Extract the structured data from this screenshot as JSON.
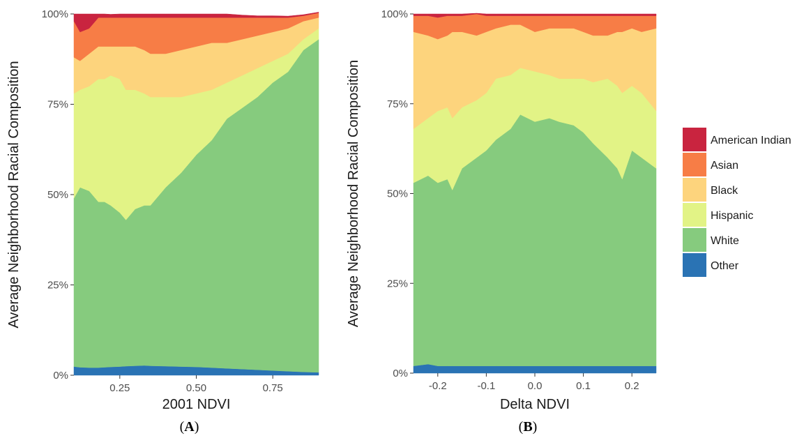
{
  "legend": {
    "items": [
      {
        "label": "American Indian",
        "color": "#c9243f"
      },
      {
        "label": "Asian",
        "color": "#f77d46"
      },
      {
        "label": "Black",
        "color": "#fdd47d"
      },
      {
        "label": "Hispanic",
        "color": "#e2f386"
      },
      {
        "label": "White",
        "color": "#86cb7e"
      },
      {
        "label": "Other",
        "color": "#2a73b4"
      }
    ]
  },
  "chart_data": [
    {
      "type": "area",
      "stacking": "fill",
      "panel_label": "A",
      "xlabel": "2001 NDVI",
      "ylabel": "Average Neighborhood Racial Composition",
      "xlim": [
        0.1,
        0.9
      ],
      "ylim": [
        0,
        1
      ],
      "x_ticks": [
        0.25,
        0.5,
        0.75
      ],
      "x_tick_labels": [
        "0.25",
        "0.50",
        "0.75"
      ],
      "y_ticks": [
        0,
        0.25,
        0.5,
        0.75,
        1
      ],
      "y_tick_labels": [
        "0%",
        "25%",
        "50%",
        "75%",
        "100%"
      ],
      "grid": false,
      "x": [
        0.1,
        0.12,
        0.15,
        0.18,
        0.2,
        0.22,
        0.25,
        0.27,
        0.3,
        0.33,
        0.35,
        0.4,
        0.45,
        0.5,
        0.55,
        0.6,
        0.65,
        0.7,
        0.75,
        0.8,
        0.85,
        0.9
      ],
      "series": [
        {
          "name": "Other",
          "color": "#2a73b4",
          "values": [
            0.024,
            0.022,
            0.021,
            0.021,
            0.022,
            0.023,
            0.024,
            0.025,
            0.026,
            0.027,
            0.026,
            0.025,
            0.024,
            0.023,
            0.021,
            0.019,
            0.017,
            0.015,
            0.013,
            0.011,
            0.009,
            0.008
          ]
        },
        {
          "name": "White",
          "color": "#86cb7e",
          "values": [
            0.466,
            0.498,
            0.489,
            0.459,
            0.458,
            0.447,
            0.426,
            0.405,
            0.434,
            0.443,
            0.444,
            0.495,
            0.536,
            0.587,
            0.629,
            0.691,
            0.723,
            0.755,
            0.797,
            0.829,
            0.891,
            0.922
          ]
        },
        {
          "name": "Hispanic",
          "color": "#e2f386",
          "values": [
            0.29,
            0.27,
            0.29,
            0.34,
            0.34,
            0.36,
            0.37,
            0.36,
            0.33,
            0.31,
            0.3,
            0.25,
            0.21,
            0.17,
            0.14,
            0.1,
            0.09,
            0.08,
            0.06,
            0.05,
            0.03,
            0.03
          ]
        },
        {
          "name": "Black",
          "color": "#fdd47d",
          "values": [
            0.1,
            0.08,
            0.09,
            0.09,
            0.09,
            0.08,
            0.09,
            0.12,
            0.12,
            0.12,
            0.12,
            0.12,
            0.13,
            0.13,
            0.13,
            0.11,
            0.1,
            0.09,
            0.08,
            0.07,
            0.05,
            0.03
          ]
        },
        {
          "name": "Asian",
          "color": "#f77d46",
          "values": [
            0.1,
            0.08,
            0.07,
            0.08,
            0.08,
            0.08,
            0.08,
            0.08,
            0.08,
            0.09,
            0.1,
            0.1,
            0.09,
            0.08,
            0.07,
            0.07,
            0.06,
            0.05,
            0.04,
            0.03,
            0.015,
            0.013
          ]
        },
        {
          "name": "American Indian",
          "color": "#c9243f",
          "values": [
            0.02,
            0.05,
            0.04,
            0.01,
            0.01,
            0.009,
            0.01,
            0.01,
            0.01,
            0.01,
            0.01,
            0.01,
            0.01,
            0.01,
            0.01,
            0.01,
            0.007,
            0.005,
            0.005,
            0.004,
            0.003,
            0.002
          ]
        }
      ]
    },
    {
      "type": "area",
      "stacking": "fill",
      "panel_label": "B",
      "xlabel": "Delta NDVI",
      "ylabel": "Average Neighborhood Racial Composition",
      "xlim": [
        -0.25,
        0.25
      ],
      "ylim": [
        0,
        1
      ],
      "x_ticks": [
        -0.2,
        -0.1,
        0.0,
        0.1,
        0.2
      ],
      "x_tick_labels": [
        "-0.2",
        "-0.1",
        "0.0",
        "0.1",
        "0.2"
      ],
      "y_ticks": [
        0,
        0.25,
        0.5,
        0.75,
        1
      ],
      "y_tick_labels": [
        "0%",
        "25%",
        "50%",
        "75%",
        "100%"
      ],
      "grid": false,
      "x": [
        -0.25,
        -0.22,
        -0.2,
        -0.18,
        -0.17,
        -0.15,
        -0.12,
        -0.1,
        -0.08,
        -0.05,
        -0.03,
        0.0,
        0.03,
        0.05,
        0.08,
        0.1,
        0.12,
        0.15,
        0.17,
        0.18,
        0.2,
        0.22,
        0.25
      ],
      "series": [
        {
          "name": "Other",
          "color": "#2a73b4",
          "values": [
            0.02,
            0.025,
            0.02,
            0.02,
            0.02,
            0.02,
            0.02,
            0.02,
            0.02,
            0.02,
            0.02,
            0.02,
            0.02,
            0.02,
            0.02,
            0.02,
            0.02,
            0.02,
            0.02,
            0.02,
            0.02,
            0.02,
            0.02
          ]
        },
        {
          "name": "White",
          "color": "#86cb7e",
          "values": [
            0.51,
            0.525,
            0.51,
            0.52,
            0.49,
            0.55,
            0.58,
            0.6,
            0.63,
            0.66,
            0.7,
            0.68,
            0.69,
            0.68,
            0.67,
            0.65,
            0.62,
            0.58,
            0.55,
            0.52,
            0.6,
            0.58,
            0.55
          ]
        },
        {
          "name": "Hispanic",
          "color": "#e2f386",
          "values": [
            0.15,
            0.16,
            0.2,
            0.2,
            0.2,
            0.17,
            0.16,
            0.16,
            0.17,
            0.15,
            0.13,
            0.14,
            0.12,
            0.12,
            0.13,
            0.15,
            0.17,
            0.22,
            0.23,
            0.24,
            0.18,
            0.18,
            0.16
          ]
        },
        {
          "name": "Black",
          "color": "#fdd47d",
          "values": [
            0.27,
            0.23,
            0.2,
            0.2,
            0.24,
            0.21,
            0.18,
            0.17,
            0.14,
            0.14,
            0.12,
            0.11,
            0.13,
            0.14,
            0.14,
            0.13,
            0.13,
            0.12,
            0.15,
            0.17,
            0.16,
            0.17,
            0.23
          ]
        },
        {
          "name": "Asian",
          "color": "#f77d46",
          "values": [
            0.045,
            0.055,
            0.06,
            0.055,
            0.045,
            0.045,
            0.06,
            0.045,
            0.035,
            0.025,
            0.025,
            0.045,
            0.035,
            0.035,
            0.035,
            0.045,
            0.055,
            0.055,
            0.045,
            0.045,
            0.035,
            0.045,
            0.035
          ]
        },
        {
          "name": "American Indian",
          "color": "#c9243f",
          "values": [
            0.005,
            0.005,
            0.01,
            0.005,
            0.005,
            0.005,
            0.002,
            0.005,
            0.005,
            0.005,
            0.005,
            0.005,
            0.005,
            0.005,
            0.005,
            0.005,
            0.005,
            0.005,
            0.005,
            0.005,
            0.005,
            0.005,
            0.005
          ]
        }
      ]
    }
  ]
}
